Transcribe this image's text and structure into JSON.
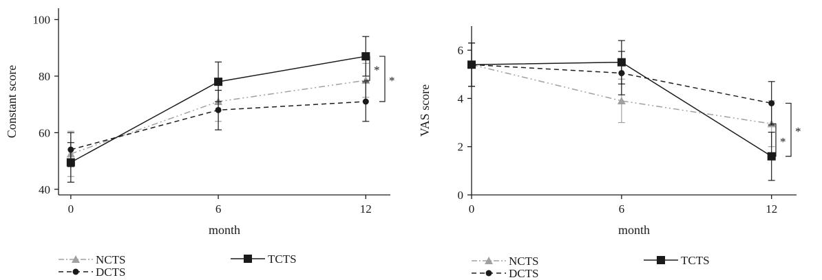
{
  "chart_data": [
    {
      "type": "line",
      "xlabel": "month",
      "ylabel": "Constant score",
      "x": [
        0,
        6,
        12
      ],
      "xticks": [
        0,
        6,
        12
      ],
      "xlim": [
        -0.5,
        13
      ],
      "ylim": [
        38,
        104
      ],
      "yticks": [
        40,
        60,
        80,
        100
      ],
      "grid": false,
      "legend_position": "bottom",
      "series": [
        {
          "name": "NCTS",
          "values": [
            52.5,
            71,
            78.5
          ],
          "errors": [
            8,
            7,
            6
          ],
          "color": "#a0a0a0",
          "marker": "triangle",
          "dash": "dash-dot-dot"
        },
        {
          "name": "TCTS",
          "values": [
            49.5,
            78,
            87
          ],
          "errors": [
            7,
            7,
            7
          ],
          "color": "#1a1a1a",
          "marker": "square",
          "dash": "solid"
        },
        {
          "name": "DCTS",
          "values": [
            54,
            68,
            71
          ],
          "errors": [
            6,
            7,
            7
          ],
          "color": "#1a1a1a",
          "marker": "circle",
          "dash": "dashed"
        }
      ],
      "significance": [
        {
          "label": "*",
          "from": 87,
          "to": 78.5
        },
        {
          "label": "*",
          "from": 87,
          "to": 71
        }
      ]
    },
    {
      "type": "line",
      "xlabel": "month",
      "ylabel": "VAS score",
      "x": [
        0,
        6,
        12
      ],
      "xticks": [
        0,
        6,
        12
      ],
      "xlim": [
        0,
        13
      ],
      "ylim": [
        0,
        7
      ],
      "yticks": [
        0,
        2,
        4,
        6
      ],
      "grid": false,
      "legend_position": "bottom",
      "series": [
        {
          "name": "NCTS",
          "values": [
            5.4,
            3.9,
            2.95
          ],
          "errors": [
            0.9,
            0.9,
            0.95
          ],
          "color": "#a0a0a0",
          "marker": "triangle",
          "dash": "dash-dot-dot"
        },
        {
          "name": "TCTS",
          "values": [
            5.4,
            5.5,
            1.6
          ],
          "errors": [
            0.9,
            0.9,
            1.0
          ],
          "color": "#1a1a1a",
          "marker": "square",
          "dash": "solid"
        },
        {
          "name": "DCTS",
          "values": [
            5.4,
            5.05,
            3.8
          ],
          "errors": [
            0.9,
            0.9,
            0.9
          ],
          "color": "#1a1a1a",
          "marker": "circle",
          "dash": "dashed"
        }
      ],
      "significance": [
        {
          "label": "*",
          "from": 2.95,
          "to": 1.6
        },
        {
          "label": "*",
          "from": 3.8,
          "to": 1.6
        }
      ]
    }
  ]
}
